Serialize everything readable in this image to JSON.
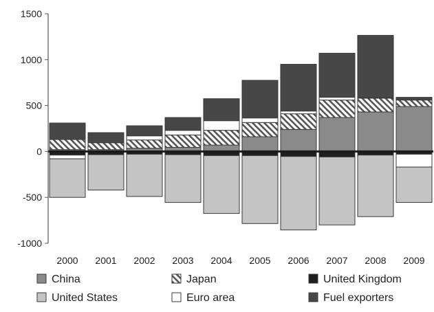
{
  "chart_data": {
    "type": "bar",
    "stacked": true,
    "title": "",
    "xlabel": "",
    "ylabel": "",
    "categories": [
      "2000",
      "2001",
      "2002",
      "2003",
      "2004",
      "2005",
      "2006",
      "2007",
      "2008",
      "2009"
    ],
    "ylim": [
      -1000,
      1500
    ],
    "yticks": [
      -1000,
      -500,
      0,
      500,
      1000,
      1500
    ],
    "grid": false,
    "legend_position": "bottom",
    "series": [
      {
        "name": "United Kingdom",
        "color": "#1f1f1f",
        "pattern": "solid",
        "values": [
          -40,
          -35,
          -30,
          -35,
          -45,
          -45,
          -55,
          -60,
          -40,
          -30
        ]
      },
      {
        "name": "China",
        "color": "#8a8a8a",
        "pattern": "solid",
        "values": [
          20,
          20,
          35,
          45,
          70,
          160,
          240,
          370,
          430,
          490
        ]
      },
      {
        "name": "Japan",
        "color": "#ffffff",
        "pattern": "hatch",
        "values": [
          110,
          75,
          90,
          135,
          160,
          155,
          170,
          190,
          150,
          70
        ]
      },
      {
        "name": "Euro area",
        "color": "#ffffff",
        "pattern": "solid",
        "values": [
          -40,
          0,
          45,
          50,
          105,
          50,
          30,
          30,
          5,
          -140
        ]
      },
      {
        "name": "Fuel exporters",
        "color": "#474747",
        "pattern": "solid",
        "values": [
          180,
          110,
          110,
          140,
          240,
          410,
          510,
          480,
          680,
          30
        ]
      },
      {
        "name": "United States",
        "color": "#c4c4c4",
        "pattern": "solid",
        "values": [
          -420,
          -385,
          -460,
          -520,
          -630,
          -740,
          -800,
          -740,
          -670,
          -385
        ]
      }
    ],
    "legend_rows": [
      [
        "China",
        "Japan",
        "United Kingdom"
      ],
      [
        "United States",
        "Euro area",
        "Fuel exporters"
      ]
    ]
  }
}
